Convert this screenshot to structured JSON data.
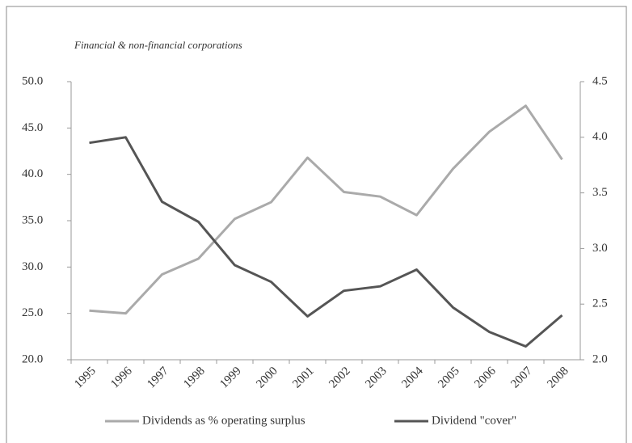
{
  "chart_data": {
    "type": "line",
    "subtitle": "Financial & non-financial corporations",
    "categories": [
      "1995",
      "1996",
      "1997",
      "1998",
      "1999",
      "2000",
      "2001",
      "2002",
      "2003",
      "2004",
      "2005",
      "2006",
      "2007",
      "2008"
    ],
    "series": [
      {
        "name": "Dividends as % operating surplus",
        "color": "#aaaaaa",
        "axis": "y",
        "values": [
          25.3,
          25.0,
          29.2,
          30.9,
          35.2,
          37.0,
          41.8,
          38.1,
          37.6,
          35.6,
          40.6,
          44.6,
          47.4,
          41.6
        ]
      },
      {
        "name": "Dividend \"cover\"",
        "color": "#555555",
        "axis": "y2",
        "values": [
          3.95,
          4.0,
          3.42,
          3.24,
          2.85,
          2.7,
          2.39,
          2.62,
          2.66,
          2.81,
          2.47,
          2.25,
          2.12,
          2.4
        ]
      }
    ],
    "ylim": [
      20,
      50
    ],
    "yticks": [
      {
        "value": 20,
        "label": "20.0"
      },
      {
        "value": 25,
        "label": "25.0"
      },
      {
        "value": 30,
        "label": "30.0"
      },
      {
        "value": 35,
        "label": "35.0"
      },
      {
        "value": 40,
        "label": "40.0"
      },
      {
        "value": 45,
        "label": "45.0"
      },
      {
        "value": 50,
        "label": "50.0"
      }
    ],
    "y2lim": [
      2,
      4.5
    ],
    "y2ticks": [
      {
        "value": 2,
        "label": "2.0"
      },
      {
        "value": 2.5,
        "label": "2.5"
      },
      {
        "value": 3,
        "label": "3.0"
      },
      {
        "value": 3.5,
        "label": "3.5"
      },
      {
        "value": 4,
        "label": "4.0"
      },
      {
        "value": 4.5,
        "label": "4.5"
      }
    ],
    "grid": false
  }
}
